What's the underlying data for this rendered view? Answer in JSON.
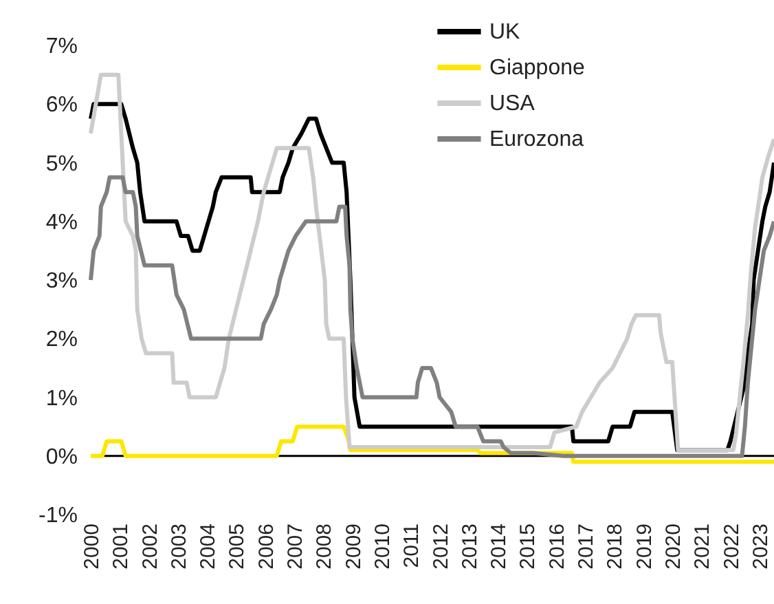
{
  "chart_data": {
    "type": "line",
    "xlim": [
      2000,
      2023.5
    ],
    "xticks": [
      2000,
      2001,
      2002,
      2003,
      2004,
      2005,
      2006,
      2007,
      2008,
      2009,
      2010,
      2011,
      2012,
      2013,
      2014,
      2015,
      2016,
      2017,
      2018,
      2019,
      2020,
      2021,
      2022,
      2023
    ],
    "ylim": [
      -1,
      7
    ],
    "yticks": [
      {
        "value": -1,
        "label": "-1%"
      },
      {
        "value": 0,
        "label": "0%"
      },
      {
        "value": 1,
        "label": "1%"
      },
      {
        "value": 2,
        "label": "2%"
      },
      {
        "value": 3,
        "label": "3%"
      },
      {
        "value": 4,
        "label": "4%"
      },
      {
        "value": 5,
        "label": "5%"
      },
      {
        "value": 6,
        "label": "6%"
      },
      {
        "value": 7,
        "label": "7%"
      }
    ],
    "grid": false,
    "legend": "top right",
    "line_style": "solid",
    "marker": "none",
    "ref_lines": [
      {
        "axis": "y",
        "value": 0,
        "color": "#000000"
      }
    ],
    "series": [
      {
        "name": "UK",
        "color": "#000000",
        "x": [
          2000.0,
          2000.1,
          2001.05,
          2001.2,
          2001.45,
          2001.6,
          2001.7,
          2001.85,
          2002.95,
          2003.1,
          2003.35,
          2003.5,
          2003.75,
          2003.9,
          2004.05,
          2004.2,
          2004.3,
          2004.5,
          2005.5,
          2005.55,
          2006.5,
          2006.6,
          2006.8,
          2006.95,
          2007.25,
          2007.5,
          2007.75,
          2007.9,
          2008.1,
          2008.3,
          2008.7,
          2008.8,
          2008.93,
          2009.0,
          2009.07,
          2009.25,
          2016.55,
          2016.6,
          2017.8,
          2017.95,
          2018.55,
          2018.7,
          2020.0,
          2020.17,
          2021.9,
          2022.0,
          2022.25,
          2022.5,
          2022.6,
          2022.75,
          2022.8,
          2022.95,
          2023.1,
          2023.2,
          2023.35,
          2023.5
        ],
        "values": [
          5.75,
          6.0,
          6.0,
          5.75,
          5.25,
          5.0,
          4.5,
          4.0,
          4.0,
          3.75,
          3.75,
          3.5,
          3.5,
          3.75,
          4.0,
          4.25,
          4.5,
          4.75,
          4.75,
          4.5,
          4.5,
          4.75,
          5.0,
          5.25,
          5.5,
          5.75,
          5.75,
          5.5,
          5.25,
          5.0,
          5.0,
          4.5,
          3.0,
          2.0,
          1.0,
          0.5,
          0.5,
          0.25,
          0.25,
          0.5,
          0.5,
          0.75,
          0.75,
          0.1,
          0.1,
          0.25,
          0.75,
          1.25,
          1.75,
          2.25,
          3.0,
          3.5,
          4.0,
          4.25,
          4.5,
          5.0
        ]
      },
      {
        "name": "Giappone",
        "color": "#ffe600",
        "x": [
          2000.0,
          2000.4,
          2000.55,
          2001.05,
          2001.2,
          2006.4,
          2006.55,
          2006.95,
          2007.1,
          2008.7,
          2008.85,
          2008.93,
          2013.3,
          2013.4,
          2016.55,
          2016.6,
          2023.5
        ],
        "values": [
          0,
          0,
          0.25,
          0.25,
          0,
          0,
          0.25,
          0.25,
          0.5,
          0.5,
          0.3,
          0.1,
          0.1,
          0.05,
          0.05,
          -0.1,
          -0.1
        ]
      },
      {
        "name": "USA",
        "color": "#cccccc",
        "x": [
          2000.0,
          2000.35,
          2000.95,
          2001.05,
          2001.2,
          2001.45,
          2001.55,
          2001.6,
          2001.75,
          2001.9,
          2002.8,
          2002.85,
          2003.3,
          2003.4,
          2004.3,
          2004.45,
          2004.6,
          2004.75,
          2005.0,
          2005.25,
          2005.5,
          2005.75,
          2005.95,
          2006.25,
          2006.4,
          2007.5,
          2007.65,
          2007.75,
          2008.05,
          2008.1,
          2008.2,
          2008.7,
          2008.78,
          2008.9,
          2015.8,
          2015.95,
          2016.7,
          2016.9,
          2017.2,
          2017.5,
          2017.95,
          2018.2,
          2018.45,
          2018.6,
          2018.75,
          2019.55,
          2019.6,
          2019.8,
          2020.0,
          2020.2,
          2022.1,
          2022.2,
          2022.45,
          2022.6,
          2022.7,
          2022.85,
          2023.0,
          2023.1,
          2023.3,
          2023.5
        ],
        "values": [
          5.5,
          6.5,
          6.5,
          5.5,
          4.0,
          3.75,
          3.5,
          2.5,
          2.0,
          1.75,
          1.75,
          1.25,
          1.25,
          1.0,
          1.0,
          1.25,
          1.5,
          2.0,
          2.5,
          3.0,
          3.5,
          4.0,
          4.5,
          5.0,
          5.25,
          5.25,
          4.75,
          4.25,
          3.0,
          2.25,
          2.0,
          2.0,
          1.0,
          0.15,
          0.15,
          0.4,
          0.5,
          0.75,
          1.0,
          1.25,
          1.5,
          1.75,
          2.0,
          2.25,
          2.4,
          2.4,
          2.1,
          1.6,
          1.6,
          0.1,
          0.1,
          0.4,
          1.6,
          2.4,
          3.1,
          3.9,
          4.4,
          4.75,
          5.1,
          5.4
        ]
      },
      {
        "name": "Eurozona",
        "color": "#808080",
        "x": [
          2000.0,
          2000.1,
          2000.3,
          2000.35,
          2000.55,
          2000.65,
          2001.1,
          2001.2,
          2001.45,
          2001.55,
          2001.6,
          2001.85,
          2002.8,
          2002.95,
          2003.2,
          2003.45,
          2005.85,
          2005.95,
          2006.2,
          2006.4,
          2006.5,
          2006.65,
          2006.8,
          2007.05,
          2007.4,
          2008.45,
          2008.55,
          2008.75,
          2008.8,
          2008.9,
          2008.93,
          2009.0,
          2009.15,
          2009.25,
          2009.35,
          2011.2,
          2011.25,
          2011.4,
          2011.7,
          2011.9,
          2012.0,
          2012.4,
          2012.55,
          2013.3,
          2013.5,
          2014.1,
          2014.2,
          2014.45,
          2015.2,
          2016.25,
          2022.4,
          2022.5,
          2022.6,
          2022.75,
          2022.85,
          2023.0,
          2023.15,
          2023.35,
          2023.5
        ],
        "values": [
          3.0,
          3.5,
          3.75,
          4.25,
          4.5,
          4.75,
          4.75,
          4.5,
          4.5,
          4.25,
          3.75,
          3.25,
          3.25,
          2.75,
          2.5,
          2.0,
          2.0,
          2.25,
          2.5,
          2.75,
          3.0,
          3.25,
          3.5,
          3.75,
          4.0,
          4.0,
          4.25,
          4.25,
          3.75,
          3.25,
          2.5,
          2.0,
          1.5,
          1.25,
          1.0,
          1.0,
          1.25,
          1.5,
          1.5,
          1.25,
          1.0,
          0.75,
          0.5,
          0.5,
          0.25,
          0.25,
          0.15,
          0.05,
          0.05,
          0,
          0,
          0.5,
          1.25,
          2.0,
          2.5,
          3.0,
          3.5,
          3.75,
          4.0
        ]
      }
    ]
  }
}
